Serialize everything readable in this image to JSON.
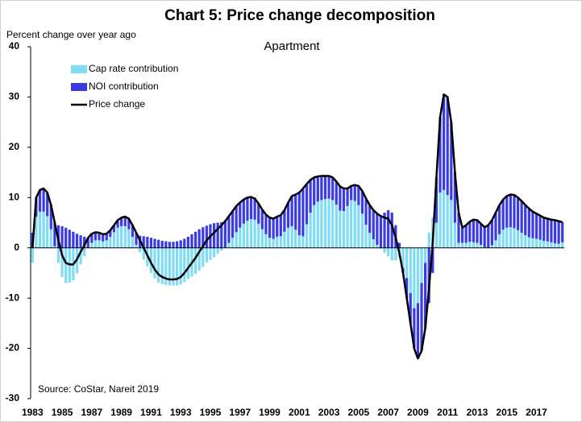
{
  "chart_data": {
    "type": "bar",
    "stacked": true,
    "title": "Chart 5: Price change decomposition",
    "subtitle": "Apartment",
    "ylabel": "Percent change over year ago",
    "annotation": "Source: CoStar, Nareit 2019",
    "legend": "upper left",
    "grid": false,
    "ylim": [
      -30,
      40
    ],
    "yticks": [
      -30,
      -20,
      -10,
      0,
      10,
      20,
      30,
      40
    ],
    "categories": [
      "1983",
      null,
      null,
      null,
      null,
      null,
      null,
      null,
      "1985",
      null,
      null,
      null,
      null,
      null,
      null,
      null,
      "1987",
      null,
      null,
      null,
      null,
      null,
      null,
      null,
      "1989",
      null,
      null,
      null,
      null,
      null,
      null,
      null,
      "1991",
      null,
      null,
      null,
      null,
      null,
      null,
      null,
      "1993",
      null,
      null,
      null,
      null,
      null,
      null,
      null,
      "1995",
      null,
      null,
      null,
      null,
      null,
      null,
      null,
      "1997",
      null,
      null,
      null,
      null,
      null,
      null,
      null,
      "1999",
      null,
      null,
      null,
      null,
      null,
      null,
      null,
      "2001",
      null,
      null,
      null,
      null,
      null,
      null,
      null,
      "2003",
      null,
      null,
      null,
      null,
      null,
      null,
      null,
      "2005",
      null,
      null,
      null,
      null,
      null,
      null,
      null,
      "2007",
      null,
      null,
      null,
      null,
      null,
      null,
      null,
      "2009",
      null,
      null,
      null,
      null,
      null,
      null,
      null,
      "2011",
      null,
      null,
      null,
      null,
      null,
      null,
      null,
      "2013",
      null,
      null,
      null,
      null,
      null,
      null,
      null,
      "2015",
      null,
      null,
      null,
      null,
      null,
      null,
      null,
      "2017",
      null,
      null,
      null,
      null,
      null,
      null,
      null
    ],
    "series": [
      {
        "name": "Cap rate contribution",
        "type": "bar",
        "color": "#80dcf2",
        "values": [
          -3,
          6.2,
          7.2,
          7.2,
          6.3,
          3.7,
          0.3,
          -3,
          -5.8,
          -7,
          -6.9,
          -6.5,
          -5.1,
          -3.3,
          -1.7,
          0,
          1,
          1.5,
          1.5,
          1.3,
          1.5,
          2.2,
          3.1,
          4,
          4.3,
          4.3,
          3.7,
          2.2,
          0.6,
          -0.9,
          -2.3,
          -3.7,
          -5,
          -6.1,
          -6.9,
          -7.2,
          -7.4,
          -7.5,
          -7.5,
          -7.5,
          -7.3,
          -6.8,
          -6.2,
          -5.7,
          -5.2,
          -4.5,
          -3.8,
          -2.9,
          -2.4,
          -1.9,
          -1.2,
          -0.6,
          0.1,
          1,
          2,
          3.1,
          4,
          4.8,
          5.4,
          5.7,
          5.6,
          4.8,
          3.7,
          2.7,
          2,
          1.8,
          2.2,
          2.3,
          3.2,
          4,
          4.3,
          3.6,
          2.5,
          2.3,
          4.7,
          7,
          8.5,
          9.2,
          9.5,
          9.7,
          9.8,
          9.5,
          8.6,
          7.4,
          7.3,
          8.3,
          9.5,
          9.3,
          8.5,
          6.8,
          4.6,
          3,
          1.7,
          0.6,
          -0.2,
          -1,
          -1.7,
          -2.5,
          -2.5,
          -2,
          -4,
          -6,
          -9,
          -12,
          -11,
          -7,
          -3,
          3,
          6,
          5,
          11,
          11.5,
          10.5,
          9.5,
          5,
          1,
          1,
          1,
          1.2,
          1.1,
          1,
          0.6,
          0.1,
          0,
          0.5,
          1.5,
          2.7,
          3.6,
          4,
          4.1,
          3.9,
          3.5,
          3,
          2.5,
          2.1,
          1.9,
          1.8,
          1.6,
          1.4,
          1.3,
          1.1,
          0.9,
          0.8,
          1.1
        ]
      },
      {
        "name": "NOI contribution",
        "type": "bar",
        "color": "#3b3be6",
        "values": [
          3,
          3.8,
          4.3,
          4.6,
          4.7,
          4.8,
          4.7,
          4.5,
          4.3,
          4,
          3.6,
          3.2,
          2.8,
          2.5,
          2.2,
          2,
          1.8,
          1.6,
          1.5,
          1.4,
          1.3,
          1.3,
          1.4,
          1.5,
          1.7,
          1.9,
          2.1,
          2.3,
          2.4,
          2.4,
          2.3,
          2.2,
          2,
          1.8,
          1.6,
          1.4,
          1.3,
          1.2,
          1.2,
          1.3,
          1.5,
          1.8,
          2.2,
          2.7,
          3.2,
          3.7,
          4.1,
          4.4,
          4.7,
          4.9,
          5,
          5.1,
          5.2,
          5.3,
          5.3,
          5.2,
          5,
          4.8,
          4.6,
          4.4,
          4.2,
          4,
          3.9,
          3.9,
          4,
          4,
          4,
          4.2,
          4.3,
          5,
          6,
          7,
          8.5,
          9.5,
          8,
          6.5,
          5.5,
          5,
          4.8,
          4.6,
          4.5,
          4.5,
          4.6,
          4.8,
          4.5,
          3.5,
          2.8,
          3.2,
          3.8,
          4.5,
          5.2,
          5.5,
          5.8,
          6.2,
          6.5,
          7,
          7.5,
          7,
          4.5,
          1,
          -1,
          -4,
          -6,
          -8,
          -11,
          -13.5,
          -13,
          -11,
          -5,
          9,
          15,
          19,
          19.5,
          15.5,
          10,
          6,
          3,
          3.5,
          4,
          4.5,
          4.5,
          4.2,
          4,
          4.5,
          5,
          5.5,
          5.8,
          6,
          6.3,
          6.5,
          6.6,
          6.5,
          6.3,
          6,
          5.7,
          5.3,
          5,
          4.8,
          4.6,
          4.5,
          4.5,
          4.6,
          4.5,
          4
        ]
      },
      {
        "name": "Price change",
        "type": "line",
        "color": "#000000",
        "values": [
          0,
          10,
          11.5,
          11.8,
          11,
          8.5,
          5,
          1.5,
          -1.5,
          -3,
          -3.3,
          -3.3,
          -2.3,
          -0.8,
          0.5,
          2,
          2.8,
          3.1,
          3,
          2.7,
          2.8,
          3.5,
          4.5,
          5.5,
          6,
          6.2,
          5.8,
          4.5,
          3,
          1.5,
          0,
          -1.5,
          -3,
          -4.3,
          -5.3,
          -5.8,
          -6.1,
          -6.3,
          -6.3,
          -6.2,
          -5.8,
          -5,
          -4,
          -3,
          -2,
          -0.8,
          0.3,
          1.5,
          2.3,
          3,
          3.8,
          4.5,
          5.3,
          6.3,
          7.3,
          8.3,
          9,
          9.6,
          10,
          10.1,
          9.8,
          8.8,
          7.6,
          6.6,
          6,
          5.8,
          6.2,
          6.5,
          7.5,
          9,
          10.3,
          10.6,
          11,
          11.8,
          12.7,
          13.5,
          14,
          14.2,
          14.3,
          14.3,
          14.3,
          14,
          13.2,
          12.2,
          11.8,
          11.8,
          12.3,
          12.5,
          12.3,
          11.3,
          9.8,
          8.5,
          7.5,
          6.8,
          6.3,
          6,
          5.8,
          4.5,
          2,
          -1,
          -5,
          -10,
          -15,
          -20,
          -22,
          -20.5,
          -16,
          -8,
          1,
          14,
          26,
          30.5,
          30,
          25,
          15,
          7,
          4,
          4.5,
          5.2,
          5.6,
          5.5,
          4.8,
          4.1,
          4.5,
          5.5,
          7,
          8.5,
          9.6,
          10.3,
          10.6,
          10.5,
          10,
          9.3,
          8.5,
          7.8,
          7.2,
          6.8,
          6.4,
          6,
          5.8,
          5.6,
          5.5,
          5.3,
          5.1
        ]
      }
    ]
  }
}
